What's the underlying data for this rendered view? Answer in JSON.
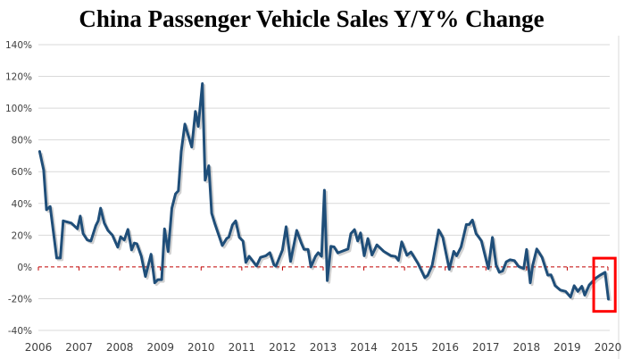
{
  "chart_data": {
    "type": "line",
    "title": "China Passenger Vehicle Sales Y/Y% Change",
    "xlabel": "",
    "ylabel": "",
    "xlim": [
      2006,
      2020
    ],
    "ylim": [
      -40,
      140
    ],
    "x_ticks": [
      "2006",
      "2007",
      "2008",
      "2009",
      "2010",
      "2011",
      "2012",
      "2013",
      "2014",
      "2015",
      "2016",
      "2017",
      "2018",
      "2019",
      "2020"
    ],
    "y_ticks": [
      -40,
      -20,
      0,
      20,
      40,
      60,
      80,
      100,
      120,
      140
    ],
    "y_tick_labels": [
      "-40%",
      "-20%",
      "0%",
      "20%",
      "40%",
      "60%",
      "80%",
      "100%",
      "120%",
      "140%"
    ],
    "grid": "horizontal",
    "zero_line": "dashed red",
    "highlight_box": "latest readings (late 2019 - 2020)",
    "colors": {
      "line": "#1f4e79",
      "zero_line": "#c00000",
      "highlight": "#ff0000",
      "grid": "#d9d9d9"
    },
    "series": [
      {
        "points": [
          [
            2006.03,
            72.7
          ],
          [
            2006.13,
            61
          ],
          [
            2006.2,
            36
          ],
          [
            2006.29,
            38
          ],
          [
            2006.45,
            5.6
          ],
          [
            2006.54,
            5.6
          ],
          [
            2006.61,
            29
          ],
          [
            2006.81,
            27.6
          ],
          [
            2006.96,
            24
          ],
          [
            2007.03,
            32
          ],
          [
            2007.1,
            21
          ],
          [
            2007.2,
            17
          ],
          [
            2007.29,
            16.3
          ],
          [
            2007.41,
            26
          ],
          [
            2007.47,
            29
          ],
          [
            2007.53,
            37
          ],
          [
            2007.62,
            27.6
          ],
          [
            2007.71,
            23
          ],
          [
            2007.82,
            20
          ],
          [
            2007.95,
            12.4
          ],
          [
            2008.02,
            19
          ],
          [
            2008.11,
            17
          ],
          [
            2008.2,
            23.6
          ],
          [
            2008.29,
            10.7
          ],
          [
            2008.36,
            15
          ],
          [
            2008.42,
            14.6
          ],
          [
            2008.53,
            6.7
          ],
          [
            2008.63,
            -6
          ],
          [
            2008.77,
            8
          ],
          [
            2008.86,
            -10
          ],
          [
            2008.94,
            -8
          ],
          [
            2009.03,
            -8
          ],
          [
            2009.1,
            24
          ],
          [
            2009.19,
            9.6
          ],
          [
            2009.28,
            37
          ],
          [
            2009.37,
            46
          ],
          [
            2009.44,
            48
          ],
          [
            2009.51,
            72.7
          ],
          [
            2009.6,
            90
          ],
          [
            2009.77,
            75.5
          ],
          [
            2009.86,
            98
          ],
          [
            2009.93,
            88.5
          ],
          [
            2010.03,
            115.5
          ],
          [
            2010.1,
            54.6
          ],
          [
            2010.19,
            63.7
          ],
          [
            2010.26,
            33.8
          ],
          [
            2010.34,
            27
          ],
          [
            2010.52,
            13.5
          ],
          [
            2010.63,
            18
          ],
          [
            2010.68,
            18.7
          ],
          [
            2010.77,
            26.5
          ],
          [
            2010.85,
            29
          ],
          [
            2010.94,
            18.6
          ],
          [
            2011.03,
            16.3
          ],
          [
            2011.1,
            2.8
          ],
          [
            2011.18,
            6.7
          ],
          [
            2011.36,
            0.6
          ],
          [
            2011.46,
            6
          ],
          [
            2011.59,
            7
          ],
          [
            2011.69,
            9
          ],
          [
            2011.79,
            1.3
          ],
          [
            2011.84,
            0.5
          ],
          [
            2012.0,
            10.7
          ],
          [
            2012.09,
            25.3
          ],
          [
            2012.2,
            3.4
          ],
          [
            2012.35,
            23
          ],
          [
            2012.46,
            15.2
          ],
          [
            2012.53,
            11
          ],
          [
            2012.63,
            11
          ],
          [
            2012.7,
            0
          ],
          [
            2012.81,
            6.6
          ],
          [
            2012.88,
            9
          ],
          [
            2012.96,
            6.7
          ],
          [
            2013.03,
            48.3
          ],
          [
            2013.1,
            -8.6
          ],
          [
            2013.19,
            13
          ],
          [
            2013.27,
            12.6
          ],
          [
            2013.36,
            8.8
          ],
          [
            2013.61,
            11.3
          ],
          [
            2013.68,
            21
          ],
          [
            2013.77,
            23.5
          ],
          [
            2013.85,
            16.3
          ],
          [
            2013.92,
            21.4
          ],
          [
            2014.01,
            7
          ],
          [
            2014.1,
            17.9
          ],
          [
            2014.2,
            7.5
          ],
          [
            2014.32,
            13.9
          ],
          [
            2014.49,
            9.8
          ],
          [
            2014.67,
            7
          ],
          [
            2014.78,
            6.6
          ],
          [
            2014.85,
            4.1
          ],
          [
            2014.93,
            15.8
          ],
          [
            2015.06,
            7.3
          ],
          [
            2015.16,
            9.4
          ],
          [
            2015.33,
            2.2
          ],
          [
            2015.5,
            -6.8
          ],
          [
            2015.57,
            -5.3
          ],
          [
            2015.68,
            1
          ],
          [
            2015.84,
            23.3
          ],
          [
            2015.94,
            18.6
          ],
          [
            2016.1,
            -1.5
          ],
          [
            2016.21,
            9.8
          ],
          [
            2016.28,
            7
          ],
          [
            2016.39,
            12.6
          ],
          [
            2016.52,
            26.7
          ],
          [
            2016.59,
            26.7
          ],
          [
            2016.67,
            29.5
          ],
          [
            2016.76,
            21
          ],
          [
            2016.83,
            18.6
          ],
          [
            2016.89,
            16.3
          ],
          [
            2017.06,
            -1
          ],
          [
            2017.16,
            18.6
          ],
          [
            2017.25,
            1.3
          ],
          [
            2017.33,
            -3.4
          ],
          [
            2017.41,
            -2.6
          ],
          [
            2017.5,
            3.2
          ],
          [
            2017.59,
            4.5
          ],
          [
            2017.7,
            4
          ],
          [
            2017.8,
            0.4
          ],
          [
            2017.93,
            -1
          ],
          [
            2018.0,
            11
          ],
          [
            2018.09,
            -10
          ],
          [
            2018.15,
            1
          ],
          [
            2018.25,
            11.3
          ],
          [
            2018.38,
            6
          ],
          [
            2018.52,
            -5.2
          ],
          [
            2018.6,
            -5
          ],
          [
            2018.7,
            -11.8
          ],
          [
            2018.83,
            -14.6
          ],
          [
            2018.96,
            -15.4
          ],
          [
            2019.08,
            -19
          ],
          [
            2019.17,
            -11.8
          ],
          [
            2019.26,
            -15.4
          ],
          [
            2019.36,
            -12.2
          ],
          [
            2019.43,
            -17.8
          ],
          [
            2019.54,
            -11.4
          ],
          [
            2019.7,
            -7.1
          ],
          [
            2019.8,
            -5.3
          ],
          [
            2019.93,
            -3.4
          ],
          [
            2020.01,
            -20.3
          ]
        ]
      }
    ]
  }
}
